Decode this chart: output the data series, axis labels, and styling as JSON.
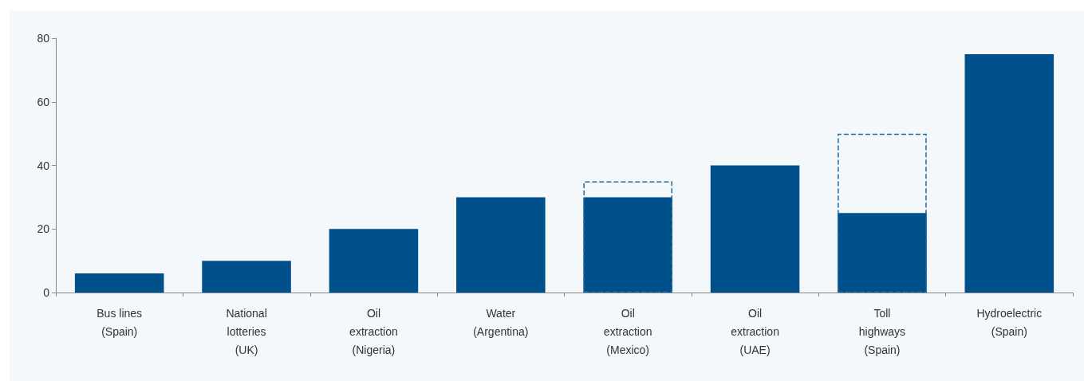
{
  "chart_data": {
    "type": "bar",
    "categories": [
      "Bus lines\n(Spain)",
      "National\nlotteries\n(UK)",
      "Oil\nextraction\n(Nigeria)",
      "Water\n(Argentina)",
      "Oil\nextraction\n(Mexico)",
      "Oil\nextraction\n(UAE)",
      "Toll\nhighways\n(Spain)",
      "Hydroelectric\n(Spain)"
    ],
    "series": [
      {
        "color": "#00518b",
        "values": [
          6,
          10,
          20,
          30,
          30,
          40,
          25,
          75
        ]
      },
      {
        "color": "#1d6aa3",
        "line_style": "dashed",
        "values": [
          null,
          null,
          null,
          null,
          35,
          null,
          50,
          null
        ]
      }
    ],
    "ylim": [
      0,
      80
    ],
    "yticks": [
      0,
      20,
      40,
      60,
      80
    ],
    "grid": false
  }
}
